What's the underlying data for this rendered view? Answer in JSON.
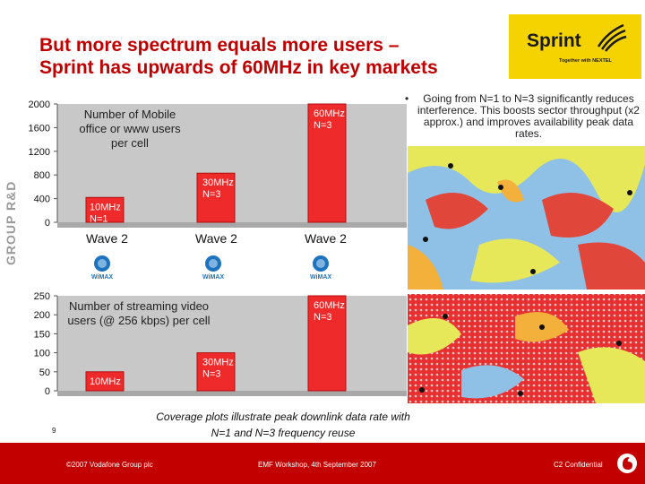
{
  "slide": {
    "title_line1": "But more spectrum equals more users –",
    "title_line2": "Sprint has upwards of 60MHz in key markets",
    "brand_logo": {
      "wordmark": "Sprint",
      "tagline": "Together with NEXTEL"
    },
    "side_label": "GROUP R&D",
    "bullet": "Going from N=1 to N=3 significantly reduces interference. This boosts sector throughput (x2 approx.) and improves availability peak data rates.",
    "coverage_caption": "Coverage plots illustrate peak downlink data rate with N=1 and N=3 frequency reuse",
    "page_number": "9",
    "footer": {
      "copyright": "©2007 Vodafone Group plc",
      "event": "EMF Workshop, 4th September 2007",
      "classification": "C2 Confidential"
    },
    "wave_labels": [
      "Wave 2",
      "Wave 2",
      "Wave 2"
    ],
    "wimax_logo_text": "WiMAX"
  },
  "colors": {
    "brand_red": "#c00000",
    "bar_red": "#ee2a2a",
    "sprint_yellow": "#f5d300"
  },
  "chart_data": [
    {
      "type": "bar",
      "title": "Number of Mobile office or www users per cell",
      "categories": [
        "10MHz N=1",
        "30MHz N=3",
        "60MHz N=3"
      ],
      "values": [
        420,
        830,
        2000
      ],
      "bar_labels": [
        "10MHz\nN=1",
        "30MHz\nN=3",
        "60MHz\nN=3"
      ],
      "ylim": [
        0,
        2000
      ],
      "yticks": [
        0,
        400,
        800,
        1200,
        1600,
        2000
      ],
      "xlabel": "",
      "ylabel": ""
    },
    {
      "type": "bar",
      "title": "Number of streaming video users (@ 256 kbps) per cell",
      "categories": [
        "10MHz",
        "30MHz N=3",
        "60MHz N=3"
      ],
      "values": [
        50,
        100,
        250
      ],
      "bar_labels": [
        "10MHz",
        "30MHz\nN=3",
        "60MHz\nN=3"
      ],
      "ylim": [
        0,
        250
      ],
      "yticks": [
        0,
        50,
        100,
        150,
        200,
        250
      ],
      "xlabel": "",
      "ylabel": ""
    }
  ]
}
